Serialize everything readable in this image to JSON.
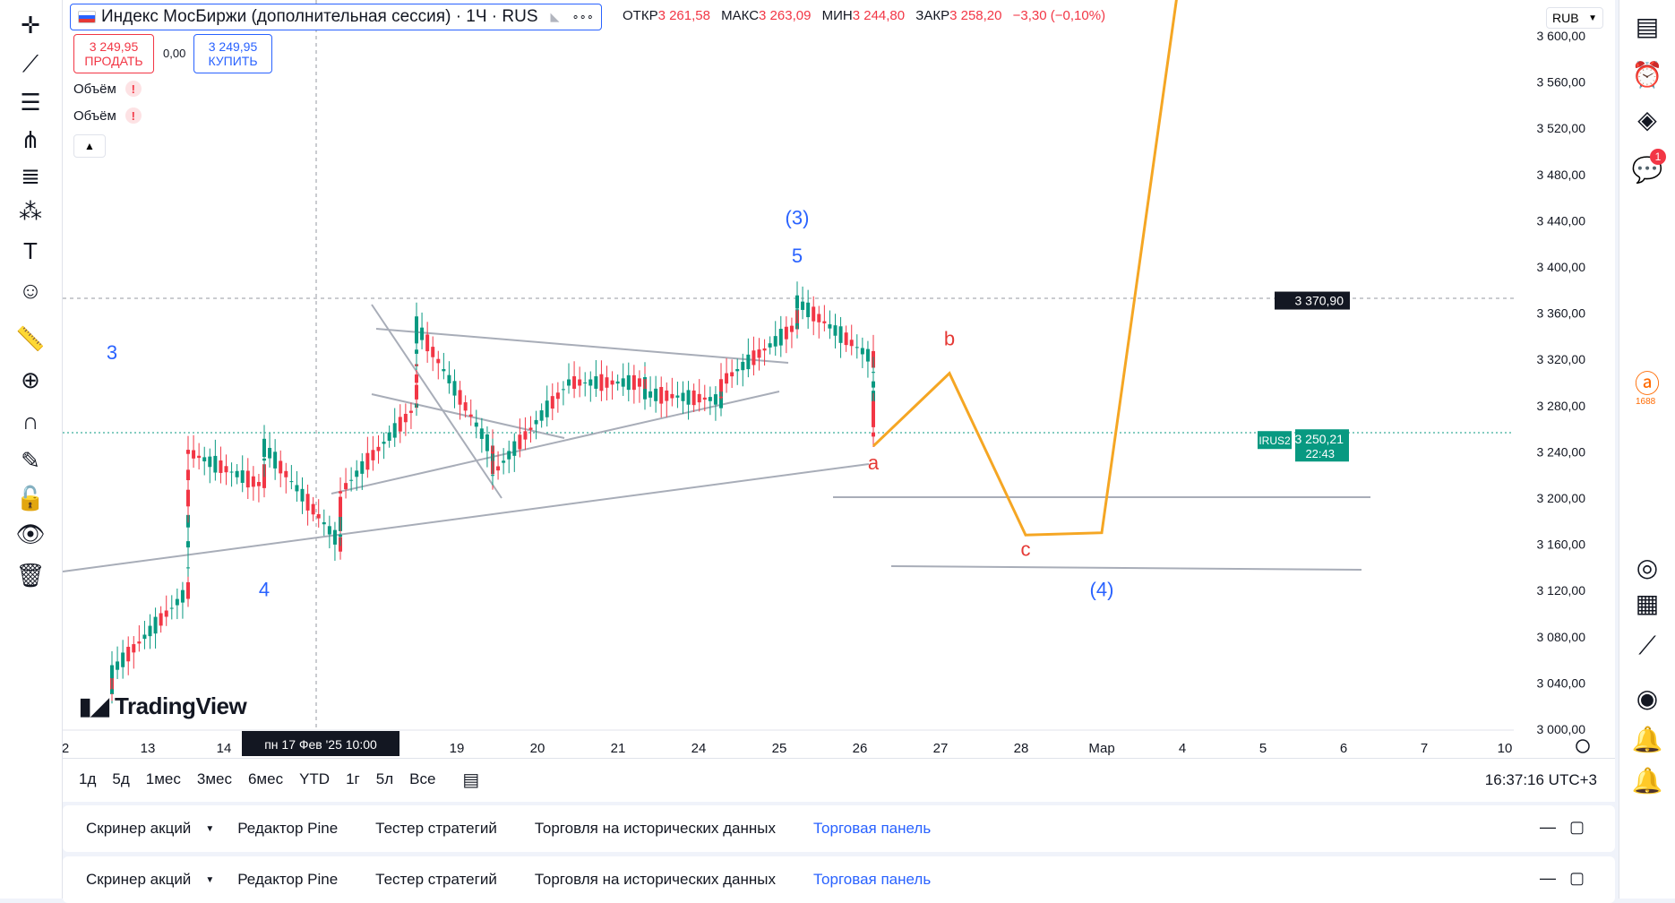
{
  "symbol": {
    "title": "Индекс МосБиржи (дополнительная сессия) · 1Ч · RUS",
    "more": "∘∘∘",
    "ohlc": [
      {
        "label": "ОТКР",
        "value": "3 261,58"
      },
      {
        "label": "МАКС",
        "value": "3 263,09"
      },
      {
        "label": "МИН",
        "value": "3 244,80"
      },
      {
        "label": "ЗАКР",
        "value": "3 258,20"
      }
    ],
    "change": "−3,30 (−0,10%)"
  },
  "trade": {
    "sell_price": "3 249,95",
    "sell_label": "ПРОДАТЬ",
    "spread": "0,00",
    "buy_price": "3 249,95",
    "buy_label": "КУПИТЬ"
  },
  "indicators": [
    {
      "label": "Объём",
      "flag": "!"
    },
    {
      "label": "Объём",
      "flag": "!"
    }
  ],
  "currency": "RUB",
  "watermark": "TradingView",
  "tools_left": [
    "crosshair-icon",
    "trend-line-icon",
    "horizontal-lines-icon",
    "pitchfork-icon",
    "fib-icon",
    "pattern-icon",
    "text-icon",
    "emoji-icon",
    "ruler-icon",
    "zoom-icon",
    "magnet-icon",
    "lock-draw-icon",
    "lock-icon",
    "eye-icon",
    "trash-icon"
  ],
  "tools_right": [
    "watchlist-icon",
    "alarm-icon",
    "layers-icon",
    "chat-icon",
    "alibaba-icon",
    "target-icon",
    "calendar-icon",
    "ideas-icon",
    "stream-icon",
    "bell-icon",
    "bell-outline-icon"
  ],
  "chat_badge": "1",
  "alibaba_label": "1688",
  "range_buttons": [
    "1д",
    "5д",
    "1мес",
    "3мес",
    "6мес",
    "YTD",
    "1г",
    "5л",
    "Все"
  ],
  "clock": "16:37:16 UTC+3",
  "bottom_tabs": [
    "Скринер акций",
    "Редактор Pine",
    "Тестер стратегий",
    "Торговля на исторических данных",
    "Торговая панель"
  ],
  "colors": {
    "up": "#089981",
    "down": "#f23645",
    "projection": "#f5a623",
    "wave_blue": "#2962ff",
    "wave_red": "#e53935",
    "trend": "#a8adb8"
  },
  "chart_data": {
    "type": "line",
    "series": [
      {
        "name": "",
        "role": "candles-approx",
        "x": [
          "2025-02-12",
          "2025-02-12",
          "2025-02-13",
          "2025-02-13",
          "2025-02-14",
          "2025-02-14",
          "2025-02-17",
          "2025-02-17",
          "2025-02-18",
          "2025-02-18",
          "2025-02-19",
          "2025-02-19",
          "2025-02-20",
          "2025-02-21",
          "2025-02-21",
          "2025-02-24",
          "2025-02-24",
          "2025-02-25",
          "2025-02-25",
          "2025-02-26",
          "2025-02-26"
        ],
        "values": [
          3035,
          3050,
          3120,
          3240,
          3210,
          3245,
          3160,
          3205,
          3280,
          3350,
          3240,
          3220,
          3300,
          3300,
          3290,
          3285,
          3300,
          3350,
          3370,
          3320,
          3255
        ]
      },
      {
        "name": "",
        "role": "projection",
        "x": [
          "2025-02-26",
          "2025-02-27",
          "2025-02-28",
          "2025-03-01",
          "2025-03-04"
        ],
        "values": [
          3245,
          3308,
          3168,
          3170,
          3640
        ]
      }
    ],
    "wave_labels": [
      {
        "text": "3",
        "color": "blue",
        "x": "2025-02-12",
        "y": 3320
      },
      {
        "text": "4",
        "color": "blue",
        "x": "2025-02-14",
        "y": 3115
      },
      {
        "text": "(3)",
        "color": "blue",
        "x": "2025-02-25",
        "y": 3437
      },
      {
        "text": "5",
        "color": "blue",
        "x": "2025-02-25",
        "y": 3404
      },
      {
        "text": "a",
        "color": "red",
        "x": "2025-02-26",
        "y": 3225
      },
      {
        "text": "b",
        "color": "red",
        "x": "2025-02-27",
        "y": 3332
      },
      {
        "text": "c",
        "color": "red",
        "x": "2025-02-28",
        "y": 3150
      },
      {
        "text": "(4)",
        "color": "blue",
        "x": "2025-03-01",
        "y": 3115
      }
    ],
    "levels": [
      {
        "value": 3188
      },
      {
        "value": 3130
      }
    ],
    "price_labels": [
      {
        "text": "3 370,90",
        "value": 3370.9
      },
      {
        "ticker": "IRUS2",
        "text": "3 250,21",
        "timer": "22:43",
        "value": 3250.21
      }
    ],
    "crosshair_label": "пн 17 Фев '25   10:00",
    "x_ticks": [
      "2",
      "13",
      "14",
      "19",
      "20",
      "21",
      "24",
      "25",
      "26",
      "27",
      "28",
      "Мар",
      "4",
      "5",
      "6",
      "7",
      "10"
    ],
    "y_ticks": [
      "3 600,00",
      "3 560,00",
      "3 520,00",
      "3 480,00",
      "3 440,00",
      "3 400,00",
      "3 360,00",
      "3 320,00",
      "3 280,00",
      "3 240,00",
      "3 200,00",
      "3 160,00",
      "3 120,00",
      "3 080,00",
      "3 040,00",
      "3 000,00"
    ],
    "ylim": [
      3000,
      3600
    ]
  }
}
